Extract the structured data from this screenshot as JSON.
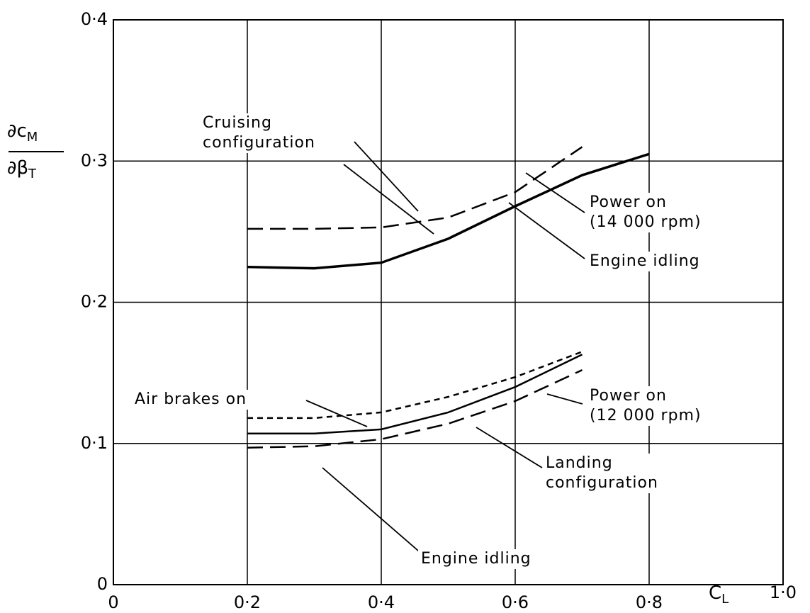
{
  "chart_data": {
    "type": "line",
    "xlabel": "C",
    "xlabel_sub": "L",
    "ylabel_numerator": "∂c",
    "ylabel_numerator_sub": "M",
    "ylabel_denominator": "∂β",
    "ylabel_denominator_sub": "T",
    "xlim": [
      0,
      1.0
    ],
    "xticks": [
      0,
      {
        "value": 0.2,
        "label": "0·2"
      },
      {
        "value": 0.4,
        "label": "0·4"
      },
      {
        "value": 0.6,
        "label": "0·6"
      },
      {
        "value": 0.8,
        "label": "0·8"
      },
      {
        "value": 1.0,
        "label": "1·0"
      }
    ],
    "ylim": [
      0,
      0.4
    ],
    "yticks": [
      0,
      {
        "value": 0.1,
        "label": "0·1"
      },
      {
        "value": 0.2,
        "label": "0·2"
      },
      {
        "value": 0.3,
        "label": "0·3"
      },
      {
        "value": 0.4,
        "label": "0·4"
      }
    ],
    "grid": true,
    "series": [
      {
        "name": "Engine idling",
        "color": "#000000",
        "style": "solid",
        "width": 3.5,
        "x": [
          0.2,
          0.3,
          0.4,
          0.5,
          0.6,
          0.7,
          0.8
        ],
        "values": [
          0.225,
          0.224,
          0.228,
          0.245,
          0.268,
          0.29,
          0.305
        ]
      },
      {
        "name": "Power on\n(14 000 rpm)",
        "color": "#000000",
        "style": "dashed",
        "width": 2.5,
        "x": [
          0.2,
          0.3,
          0.4,
          0.5,
          0.6,
          0.7
        ],
        "values": [
          0.252,
          0.252,
          0.253,
          0.26,
          0.278,
          0.31
        ]
      },
      {
        "name": "Air brakes on",
        "color": "#000000",
        "style": "dotted",
        "width": 2.5,
        "x": [
          0.2,
          0.3,
          0.4,
          0.5,
          0.6,
          0.7
        ],
        "values": [
          0.118,
          0.118,
          0.122,
          0.133,
          0.147,
          0.165
        ]
      },
      {
        "name": "Engine idling",
        "color": "#000000",
        "style": "solid",
        "width": 2.5,
        "x": [
          0.2,
          0.3,
          0.4,
          0.5,
          0.6,
          0.7
        ],
        "values": [
          0.107,
          0.107,
          0.11,
          0.122,
          0.14,
          0.163
        ]
      },
      {
        "name": "Power on\n(12 000 rpm)",
        "color": "#000000",
        "style": "dashed",
        "width": 2.5,
        "x": [
          0.2,
          0.3,
          0.4,
          0.5,
          0.6,
          0.7
        ],
        "values": [
          0.097,
          0.098,
          0.103,
          0.114,
          0.13,
          0.152
        ]
      }
    ],
    "annotations": [
      "Cruising\nconfiguration",
      "Landing\nconfiguration"
    ]
  }
}
